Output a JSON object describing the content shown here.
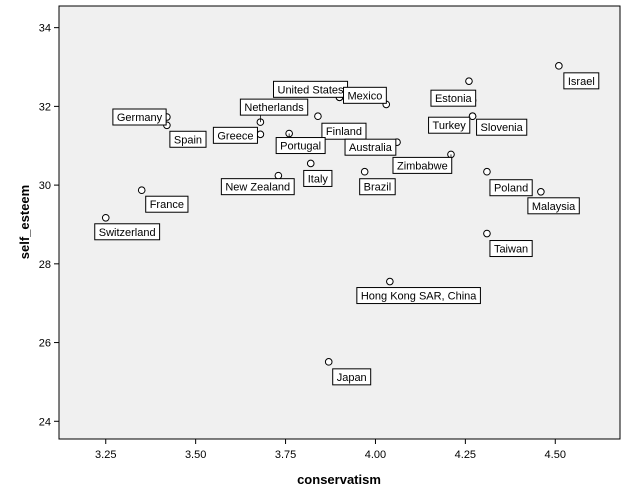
{
  "chart_data": {
    "type": "scatter",
    "title": "",
    "xlabel": "conservatism",
    "ylabel": "self_esteem",
    "xlim": [
      3.12,
      4.68
    ],
    "ylim": [
      23.55,
      34.55
    ],
    "x_ticks": [
      "3.25",
      "3.50",
      "3.75",
      "4.00",
      "4.25",
      "4.50"
    ],
    "x_tick_values": [
      3.25,
      3.5,
      3.75,
      4.0,
      4.25,
      4.5
    ],
    "y_ticks": [
      "24",
      "26",
      "28",
      "30",
      "32",
      "34"
    ],
    "y_tick_values": [
      24,
      26,
      28,
      30,
      32,
      34
    ],
    "grid": false,
    "colors": {
      "plot_bg": "#f0f0f0",
      "marker_fill": "#ffffff",
      "marker_stroke": "#000000",
      "label_bg": "#ffffff"
    },
    "points": [
      {
        "label": "Israel",
        "x": 4.51,
        "y": 33.03
      },
      {
        "label": "Estonia",
        "x": 4.26,
        "y": 32.64
      },
      {
        "label": "",
        "x": 4.27,
        "y": 32.15
      },
      {
        "label": "Turkey",
        "x": 4.27,
        "y": 31.75
      },
      {
        "label": "Slovenia",
        "x": 4.27,
        "y": 31.75
      },
      {
        "label": "United States",
        "x": 3.9,
        "y": 32.23
      },
      {
        "label": "Mexico",
        "x": 3.9,
        "y": 32.23
      },
      {
        "label": "",
        "x": 4.03,
        "y": 32.05
      },
      {
        "label": "Germany",
        "x": 3.42,
        "y": 31.73
      },
      {
        "label": "Spain",
        "x": 3.42,
        "y": 31.52
      },
      {
        "label": "Netherlands",
        "x": 3.68,
        "y": 31.6
      },
      {
        "label": "Greece",
        "x": 3.68,
        "y": 31.29
      },
      {
        "label": "Finland",
        "x": 3.84,
        "y": 31.75
      },
      {
        "label": "Portugal",
        "x": 3.76,
        "y": 31.31
      },
      {
        "label": "Australia",
        "x": 4.06,
        "y": 31.09
      },
      {
        "label": "Zimbabwe",
        "x": 4.21,
        "y": 30.78
      },
      {
        "label": "Italy",
        "x": 3.82,
        "y": 30.55
      },
      {
        "label": "Brazil",
        "x": 3.97,
        "y": 30.34
      },
      {
        "label": "Poland",
        "x": 4.31,
        "y": 30.34
      },
      {
        "label": "New Zealand",
        "x": 3.73,
        "y": 30.24
      },
      {
        "label": "Malaysia",
        "x": 4.46,
        "y": 29.83
      },
      {
        "label": "France",
        "x": 3.35,
        "y": 29.87
      },
      {
        "label": "Switzerland",
        "x": 3.25,
        "y": 29.17
      },
      {
        "label": "Taiwan",
        "x": 4.31,
        "y": 28.77
      },
      {
        "label": "Hong Kong SAR, China",
        "x": 4.04,
        "y": 27.55
      },
      {
        "label": "Japan",
        "x": 3.87,
        "y": 25.51
      }
    ]
  }
}
